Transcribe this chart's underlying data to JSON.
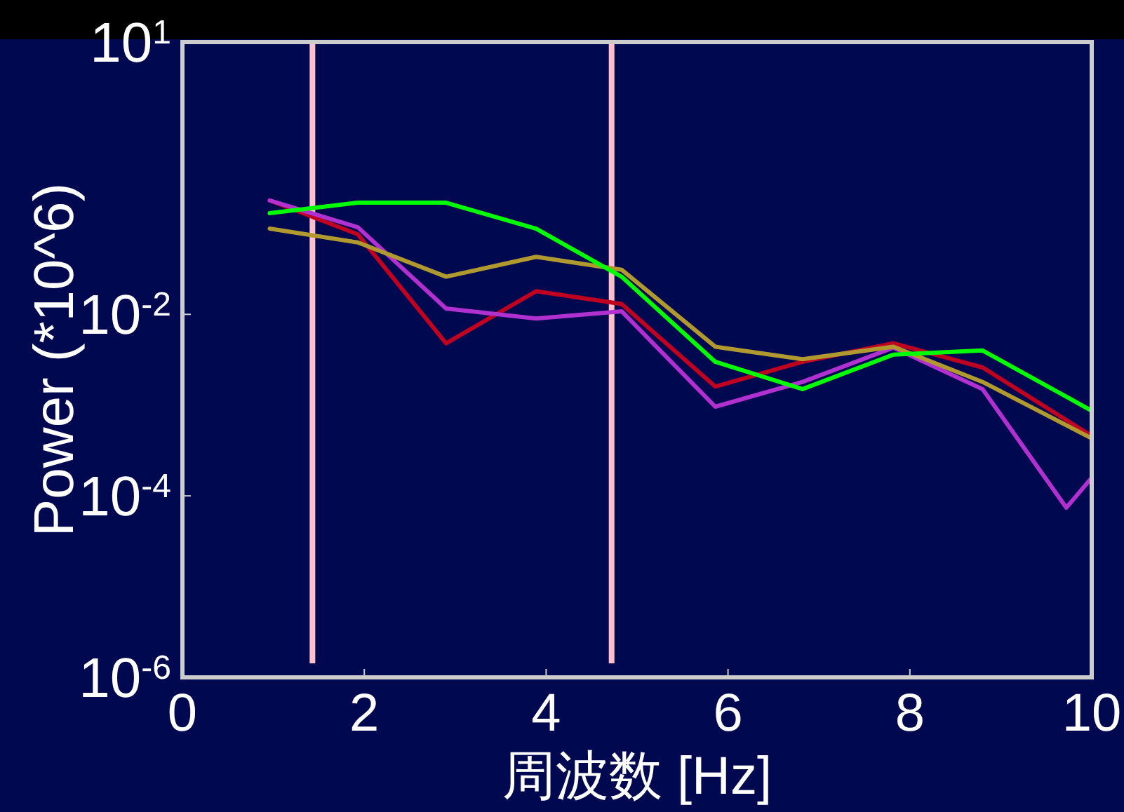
{
  "chart_data": {
    "type": "line",
    "xlabel": "周波数 [Hz]",
    "ylabel": "Power (*10^6)",
    "log": "y",
    "grid": false,
    "marker": "none",
    "line_style": "solid",
    "x": [
      0.96,
      1.93,
      2.9,
      3.89,
      4.83,
      5.86,
      6.82,
      7.82,
      8.8,
      9.98
    ],
    "xlim": [
      0,
      10
    ],
    "xticks": [
      0,
      2,
      4,
      6,
      8,
      10
    ],
    "ylim": [
      1e-06,
      10
    ],
    "yticks": [
      {
        "value": 1e-06,
        "label": "10$^{-6}$"
      },
      {
        "value": 0.0001,
        "label": "10$^{-4}$"
      },
      {
        "value": 0.01,
        "label": "10$^{-2}$"
      },
      {
        "value": 10,
        "label": "10$^{1}$"
      }
    ],
    "ref_lines": [
      {
        "axis": "x",
        "value": 1.43,
        "color": "#ffc0cb"
      },
      {
        "axis": "x",
        "value": 4.72,
        "color": "#ffc0cb"
      }
    ],
    "series": [
      {
        "color": "#c00020",
        "values": [
          0.18,
          0.076,
          0.0048,
          0.018,
          0.013,
          0.0016,
          0.003,
          0.0048,
          0.0026,
          0.00047
        ]
      },
      {
        "color": "#b030d0",
        "x": [
          0.96,
          1.93,
          2.9,
          3.89,
          4.83,
          5.86,
          6.82,
          7.82,
          8.8,
          9.72,
          9.98
        ],
        "values": [
          0.18,
          0.091,
          0.0116,
          0.009,
          0.0108,
          0.00096,
          0.0018,
          0.0043,
          0.0015,
          7.4e-05,
          0.00015
        ]
      },
      {
        "color": "#b09a30",
        "values": [
          0.088,
          0.062,
          0.026,
          0.043,
          0.031,
          0.0044,
          0.0032,
          0.0044,
          0.0018,
          0.00044
        ]
      },
      {
        "color": "#00ff00",
        "values": [
          0.13,
          0.17,
          0.17,
          0.088,
          0.026,
          0.003,
          0.0015,
          0.0036,
          0.004,
          0.00089
        ]
      }
    ]
  }
}
